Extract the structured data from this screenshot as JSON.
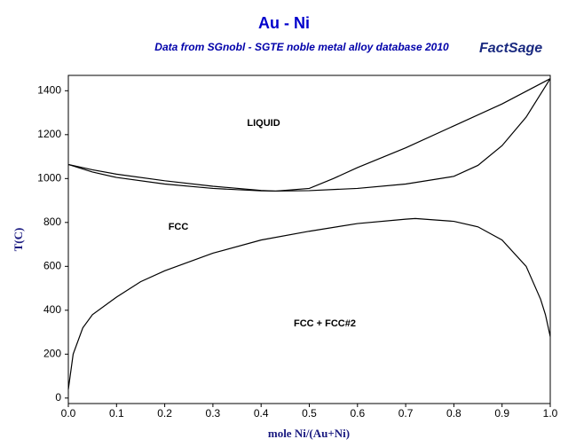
{
  "chart_data": {
    "type": "line",
    "title": "Au - Ni",
    "subtitle": "Data from SGnobl - SGTE noble metal alloy database 2010",
    "logo": "FactSage",
    "xlabel": "mole Ni/(Au+Ni)",
    "ylabel": "T(C)",
    "xlim": [
      0,
      1
    ],
    "ylim": [
      -25,
      1470
    ],
    "xticks": [
      {
        "value": 0,
        "label": "0.0"
      },
      0.1,
      0.2,
      0.3,
      0.4,
      0.5,
      0.6,
      0.7,
      0.8,
      0.9,
      {
        "value": 1,
        "label": "1.0"
      }
    ],
    "yticks": [
      0,
      200,
      400,
      600,
      800,
      1000,
      1200,
      1400
    ],
    "annotations": [
      "LIQUID",
      "FCC",
      "FCC + FCC#2"
    ],
    "series": [
      {
        "color": "#000000",
        "x": [
          0,
          0.05,
          0.1,
          0.2,
          0.3,
          0.4,
          0.43,
          0.5,
          0.55,
          0.6,
          0.7,
          0.8,
          0.9,
          1
        ],
        "values": [
          1064,
          1040,
          1020,
          990,
          965,
          946,
          943,
          955,
          1000,
          1050,
          1140,
          1240,
          1340,
          1455
        ]
      },
      {
        "color": "#000000",
        "x": [
          0,
          0.05,
          0.1,
          0.2,
          0.3,
          0.4,
          0.43,
          0.5,
          0.6,
          0.7,
          0.8,
          0.85,
          0.9,
          0.95,
          1
        ],
        "values": [
          1064,
          1030,
          1005,
          975,
          955,
          944,
          943,
          945,
          955,
          975,
          1010,
          1060,
          1150,
          1280,
          1455
        ]
      },
      {
        "color": "#000000",
        "x": [
          0,
          0.01,
          0.03,
          0.05,
          0.1,
          0.15,
          0.2,
          0.3,
          0.4,
          0.5,
          0.6,
          0.7,
          0.72,
          0.8,
          0.85,
          0.9,
          0.95,
          0.98,
          0.99,
          1
        ],
        "values": [
          40,
          200,
          320,
          380,
          460,
          530,
          580,
          660,
          720,
          760,
          795,
          815,
          818,
          805,
          780,
          720,
          600,
          450,
          380,
          280
        ]
      }
    ]
  }
}
